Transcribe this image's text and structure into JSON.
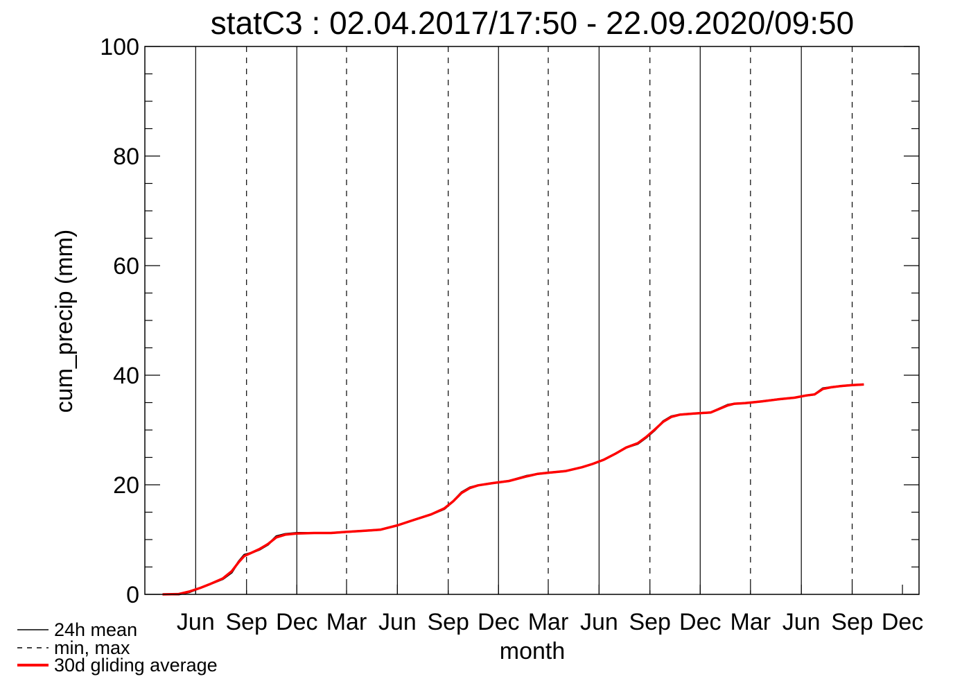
{
  "chart_data": {
    "type": "line",
    "title": "statC3 : 02.04.2017/17:50 - 22.09.2020/09:50",
    "xlabel": "month",
    "ylabel": "cum_precip (mm)",
    "ylim": [
      0,
      100
    ],
    "yticks": [
      0,
      20,
      40,
      60,
      80,
      100
    ],
    "xlim": [
      "2017-03-01",
      "2020-12-31"
    ],
    "xticks": [
      {
        "date": "2017-06-01",
        "label": "Jun"
      },
      {
        "date": "2017-09-01",
        "label": "Sep"
      },
      {
        "date": "2017-12-01",
        "label": "Dec"
      },
      {
        "date": "2018-03-01",
        "label": "Mar"
      },
      {
        "date": "2018-06-01",
        "label": "Jun"
      },
      {
        "date": "2018-09-01",
        "label": "Sep"
      },
      {
        "date": "2018-12-01",
        "label": "Dec"
      },
      {
        "date": "2019-03-01",
        "label": "Mar"
      },
      {
        "date": "2019-06-01",
        "label": "Jun"
      },
      {
        "date": "2019-09-01",
        "label": "Sep"
      },
      {
        "date": "2019-12-01",
        "label": "Dec"
      },
      {
        "date": "2020-03-01",
        "label": "Mar"
      },
      {
        "date": "2020-06-01",
        "label": "Jun"
      },
      {
        "date": "2020-09-01",
        "label": "Sep"
      },
      {
        "date": "2020-12-01",
        "label": "Dec"
      }
    ],
    "gridlines": {
      "solid": [
        "2017-06-01",
        "2017-12-01",
        "2018-06-01",
        "2018-12-01",
        "2019-06-01",
        "2019-12-01",
        "2020-06-01"
      ],
      "dashed": [
        "2017-09-01",
        "2018-03-01",
        "2018-09-01",
        "2019-03-01",
        "2019-09-01",
        "2020-03-01",
        "2020-09-01"
      ]
    },
    "legend": {
      "position": "bottom-left",
      "entries": [
        {
          "label": "24h mean",
          "style": "solid",
          "color": "#000000"
        },
        {
          "label": "min, max",
          "style": "dashed",
          "color": "#000000"
        },
        {
          "label": "30d gliding average",
          "style": "solid-thick",
          "color": "#ff0000"
        }
      ]
    },
    "series": [
      {
        "name": "24h mean",
        "color": "#000000",
        "x": [
          "2017-04-02",
          "2017-05-01",
          "2017-05-20",
          "2017-06-10",
          "2017-06-25",
          "2017-07-20",
          "2017-08-05",
          "2017-08-18",
          "2017-08-28",
          "2017-09-10",
          "2017-09-25",
          "2017-10-10",
          "2017-10-25",
          "2017-11-10",
          "2017-12-01",
          "2018-01-01",
          "2018-02-01",
          "2018-03-01",
          "2018-04-01",
          "2018-05-01",
          "2018-06-01",
          "2018-07-01",
          "2018-08-01",
          "2018-08-25",
          "2018-09-10",
          "2018-09-25",
          "2018-10-10",
          "2018-10-25",
          "2018-11-20",
          "2018-12-20",
          "2019-01-20",
          "2019-02-10",
          "2019-03-01",
          "2019-04-01",
          "2019-05-01",
          "2019-05-20",
          "2019-06-10",
          "2019-07-01",
          "2019-07-20",
          "2019-08-10",
          "2019-08-25",
          "2019-09-10",
          "2019-09-25",
          "2019-10-10",
          "2019-10-25",
          "2019-11-20",
          "2019-12-20",
          "2020-01-20",
          "2020-02-01",
          "2020-02-20",
          "2020-03-20",
          "2020-04-20",
          "2020-05-20",
          "2020-06-10",
          "2020-06-25",
          "2020-07-10",
          "2020-07-25",
          "2020-08-10",
          "2020-09-01",
          "2020-09-22"
        ],
        "y": [
          0,
          0,
          0.4,
          1.2,
          1.8,
          2.8,
          4.0,
          6.0,
          7.2,
          7.6,
          8.2,
          9.1,
          10.6,
          11.0,
          11.2,
          11.2,
          11.2,
          11.4,
          11.6,
          11.8,
          12.6,
          13.6,
          14.6,
          15.6,
          17.0,
          18.6,
          19.5,
          19.9,
          20.3,
          20.7,
          21.6,
          22.0,
          22.2,
          22.5,
          23.2,
          23.8,
          24.6,
          25.7,
          26.8,
          27.5,
          28.6,
          30.0,
          31.6,
          32.5,
          32.8,
          33.0,
          33.2,
          34.6,
          34.8,
          34.9,
          35.2,
          35.6,
          35.9,
          36.3,
          36.5,
          37.6,
          37.8,
          38.0,
          38.2,
          38.3
        ]
      },
      {
        "name": "30d gliding average",
        "color": "#ff0000",
        "x": [
          "2017-04-02",
          "2017-05-01",
          "2017-05-20",
          "2017-06-10",
          "2017-06-25",
          "2017-07-20",
          "2017-08-05",
          "2017-08-18",
          "2017-08-28",
          "2017-09-10",
          "2017-09-25",
          "2017-10-10",
          "2017-10-25",
          "2017-11-10",
          "2017-12-01",
          "2018-01-01",
          "2018-02-01",
          "2018-03-01",
          "2018-04-01",
          "2018-05-01",
          "2018-06-01",
          "2018-07-01",
          "2018-08-01",
          "2018-08-25",
          "2018-09-10",
          "2018-09-25",
          "2018-10-10",
          "2018-10-25",
          "2018-11-20",
          "2018-12-20",
          "2019-01-20",
          "2019-02-10",
          "2019-03-01",
          "2019-04-01",
          "2019-05-01",
          "2019-05-20",
          "2019-06-10",
          "2019-07-01",
          "2019-07-20",
          "2019-08-10",
          "2019-08-25",
          "2019-09-10",
          "2019-09-25",
          "2019-10-10",
          "2019-10-25",
          "2019-11-20",
          "2019-12-20",
          "2020-01-20",
          "2020-02-01",
          "2020-02-20",
          "2020-03-20",
          "2020-04-20",
          "2020-05-20",
          "2020-06-10",
          "2020-06-25",
          "2020-07-10",
          "2020-07-25",
          "2020-08-10",
          "2020-09-01",
          "2020-09-22"
        ],
        "y": [
          0,
          0.05,
          0.5,
          1.2,
          1.8,
          2.9,
          4.2,
          5.9,
          7.0,
          7.6,
          8.3,
          9.2,
          10.4,
          10.9,
          11.1,
          11.2,
          11.2,
          11.4,
          11.6,
          11.8,
          12.6,
          13.6,
          14.6,
          15.7,
          17.0,
          18.5,
          19.4,
          19.9,
          20.3,
          20.7,
          21.5,
          22.0,
          22.2,
          22.5,
          23.2,
          23.8,
          24.6,
          25.7,
          26.8,
          27.6,
          28.7,
          30.1,
          31.5,
          32.4,
          32.8,
          33.0,
          33.2,
          34.5,
          34.8,
          34.9,
          35.2,
          35.6,
          35.9,
          36.3,
          36.5,
          37.5,
          37.8,
          38.0,
          38.2,
          38.3
        ]
      }
    ]
  }
}
